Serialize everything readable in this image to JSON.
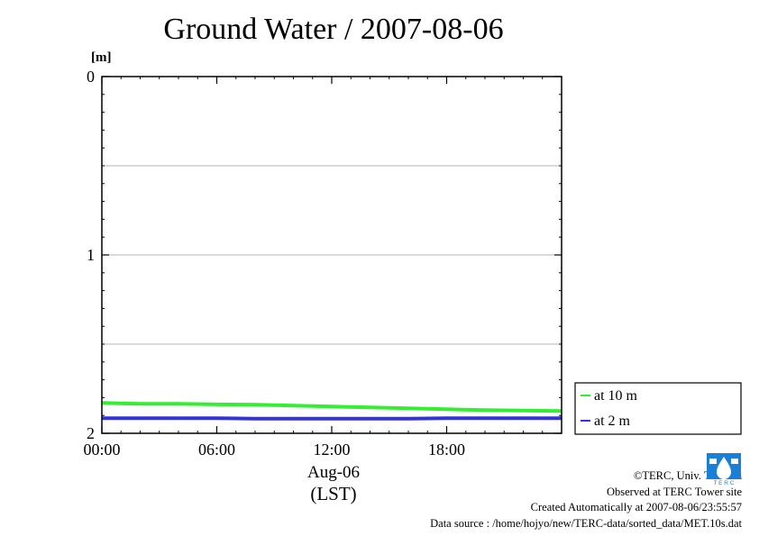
{
  "title": "Ground Water / 2007-08-06",
  "y_unit": "[m]",
  "x_date_label": "Aug-06",
  "x_tz_label": "(LST)",
  "credits": {
    "copyright": "©TERC, Univ. Tsukuba",
    "observed": "Observed at TERC Tower site",
    "created": "Created Automatically at 2007-08-06/23:55:57",
    "source": "Data source : /home/hojyo/new/TERC-data/sorted_data/MET.10s.dat"
  },
  "logo_text": "TERC",
  "chart_data": {
    "type": "line",
    "title": "Ground Water / 2007-08-06",
    "ylabel": "[m]",
    "ylim": [
      0,
      2
    ],
    "y_inverted": true,
    "y_ticks": [
      0,
      1,
      2
    ],
    "y_tick_labels": [
      "0",
      "1",
      "2"
    ],
    "y_grid": [
      0.5,
      1,
      1.5
    ],
    "xlim": [
      0,
      24
    ],
    "x_ticks": [
      0,
      6,
      12,
      18
    ],
    "x_tick_labels": [
      "00:00",
      "06:00",
      "12:00",
      "18:00"
    ],
    "legend_position": "right",
    "series": [
      {
        "name": "at 10 m",
        "color": "#33ee33",
        "x": [
          0,
          2,
          4,
          6,
          8,
          10,
          12,
          14,
          16,
          18,
          20,
          22,
          24
        ],
        "y": [
          1.83,
          1.835,
          1.835,
          1.838,
          1.84,
          1.845,
          1.85,
          1.855,
          1.86,
          1.865,
          1.87,
          1.872,
          1.875
        ]
      },
      {
        "name": "at 2 m",
        "color": "#3333dd",
        "x": [
          0,
          4,
          6,
          8,
          12,
          16,
          18,
          20,
          24
        ],
        "y": [
          1.915,
          1.915,
          1.915,
          1.918,
          1.918,
          1.918,
          1.915,
          1.915,
          1.915
        ]
      }
    ]
  }
}
